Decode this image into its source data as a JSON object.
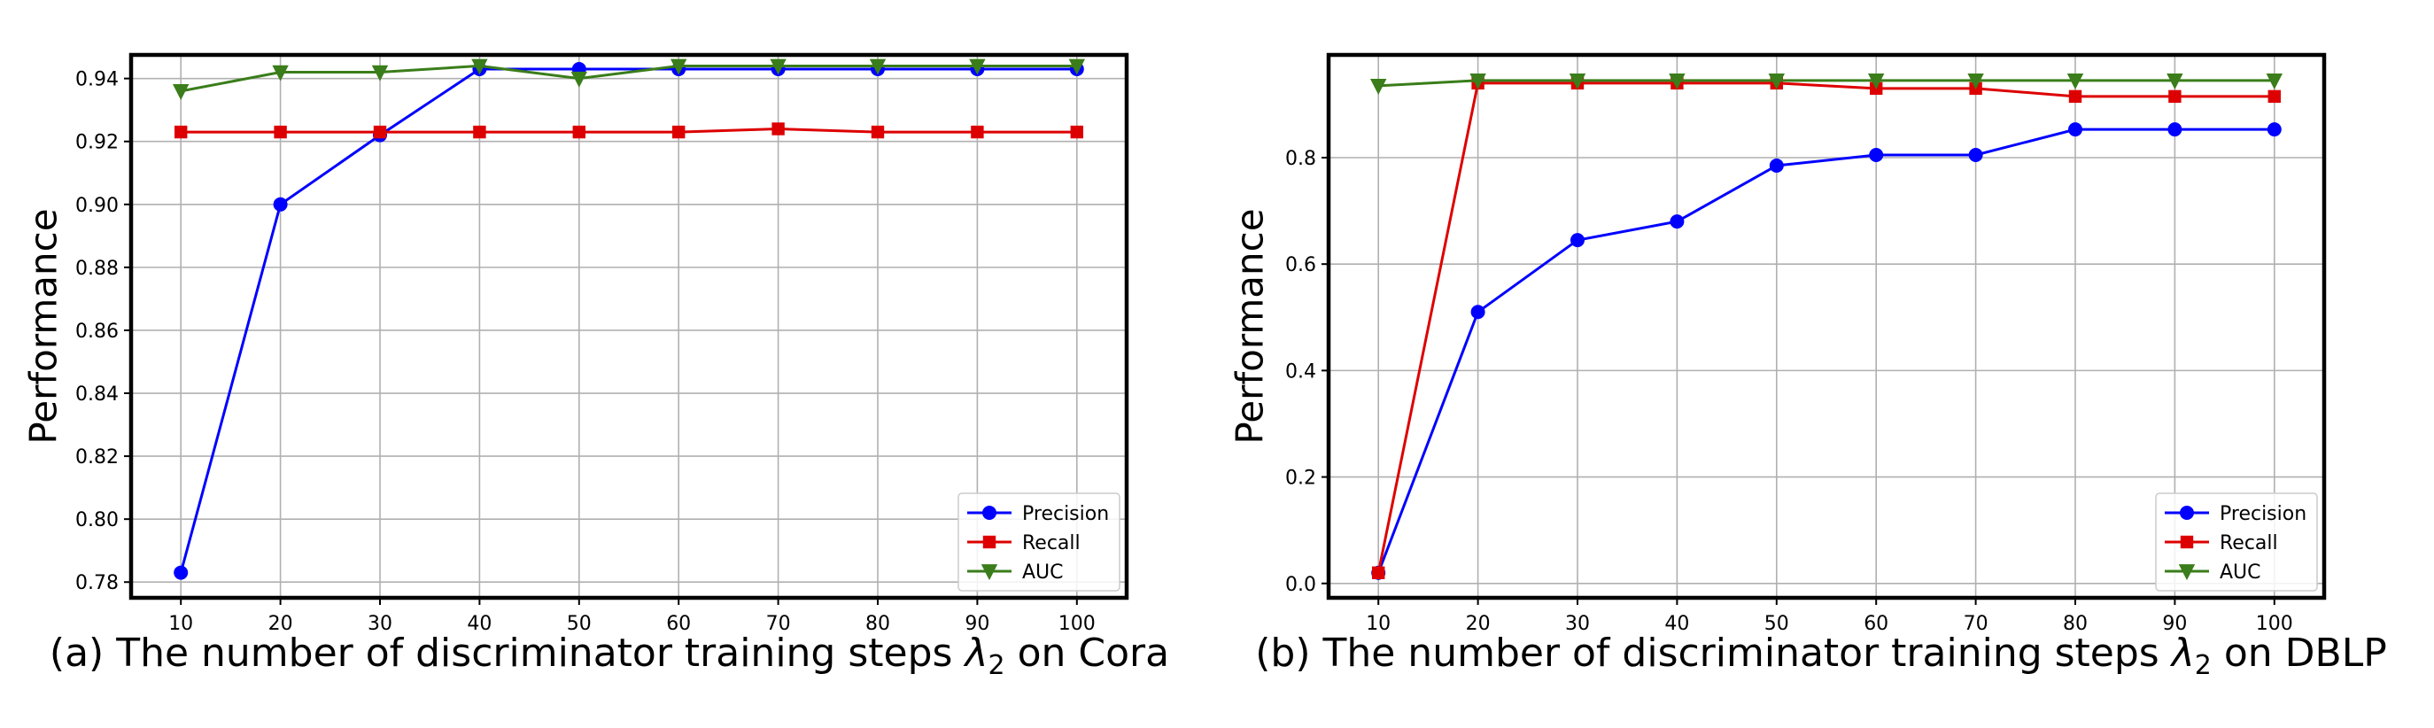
{
  "colors": {
    "precision": "#0000ff",
    "recall": "#dd0000",
    "auc": "#3a7d1a"
  },
  "chart_data": [
    {
      "type": "line",
      "caption": "(a) The number of discriminator training steps λ2 on Cora",
      "caption_prefix": "(a) The number of discriminator training steps ",
      "caption_symbol": "λ",
      "caption_subscript": "2",
      "caption_suffix": " on Cora",
      "xlabel": "",
      "ylabel": "Performance",
      "x": [
        10,
        20,
        30,
        40,
        50,
        60,
        70,
        80,
        90,
        100
      ],
      "xticks": [
        "10",
        "20",
        "30",
        "40",
        "50",
        "60",
        "70",
        "80",
        "90",
        "100"
      ],
      "xlim": [
        5,
        105
      ],
      "ylim": [
        0.775,
        0.9475
      ],
      "yticks": [
        0.78,
        0.8,
        0.82,
        0.84,
        0.86,
        0.88,
        0.9,
        0.92,
        0.94
      ],
      "ytick_labels": [
        "0.78",
        "0.80",
        "0.82",
        "0.84",
        "0.86",
        "0.88",
        "0.90",
        "0.92",
        "0.94"
      ],
      "grid": true,
      "legend": "lower-right",
      "series": [
        {
          "name": "Precision",
          "marker": "circle",
          "color": "#0000ff",
          "values": [
            0.783,
            0.9,
            0.922,
            0.943,
            0.943,
            0.943,
            0.943,
            0.943,
            0.943,
            0.943
          ]
        },
        {
          "name": "Recall",
          "marker": "square",
          "color": "#dd0000",
          "values": [
            0.923,
            0.923,
            0.923,
            0.923,
            0.923,
            0.923,
            0.924,
            0.923,
            0.923,
            0.923
          ]
        },
        {
          "name": "AUC",
          "marker": "triangle-down",
          "color": "#3a7d1a",
          "values": [
            0.936,
            0.942,
            0.942,
            0.944,
            0.94,
            0.944,
            0.944,
            0.944,
            0.944,
            0.944
          ]
        }
      ]
    },
    {
      "type": "line",
      "caption": "(b) The number of discriminator training steps λ2 on DBLP",
      "caption_prefix": "(b) The number of discriminator training steps ",
      "caption_symbol": "λ",
      "caption_subscript": "2",
      "caption_suffix": " on DBLP",
      "xlabel": "",
      "ylabel": "Performance",
      "x": [
        10,
        20,
        30,
        40,
        50,
        60,
        70,
        80,
        90,
        100
      ],
      "xticks": [
        "10",
        "20",
        "30",
        "40",
        "50",
        "60",
        "70",
        "80",
        "90",
        "100"
      ],
      "xlim": [
        5,
        105
      ],
      "ylim": [
        -0.027,
        0.993
      ],
      "yticks": [
        0.0,
        0.2,
        0.4,
        0.6,
        0.8
      ],
      "ytick_labels": [
        "0.0",
        "0.2",
        "0.4",
        "0.6",
        "0.8"
      ],
      "grid": true,
      "legend": "lower-right",
      "series": [
        {
          "name": "Precision",
          "marker": "circle",
          "color": "#0000ff",
          "values": [
            0.02,
            0.51,
            0.645,
            0.68,
            0.785,
            0.805,
            0.805,
            0.853,
            0.853,
            0.853
          ]
        },
        {
          "name": "Recall",
          "marker": "square",
          "color": "#dd0000",
          "values": [
            0.02,
            0.94,
            0.94,
            0.94,
            0.94,
            0.93,
            0.93,
            0.915,
            0.915,
            0.915
          ]
        },
        {
          "name": "AUC",
          "marker": "triangle-down",
          "color": "#3a7d1a",
          "values": [
            0.935,
            0.945,
            0.945,
            0.945,
            0.945,
            0.945,
            0.945,
            0.945,
            0.945,
            0.945
          ]
        }
      ]
    }
  ]
}
